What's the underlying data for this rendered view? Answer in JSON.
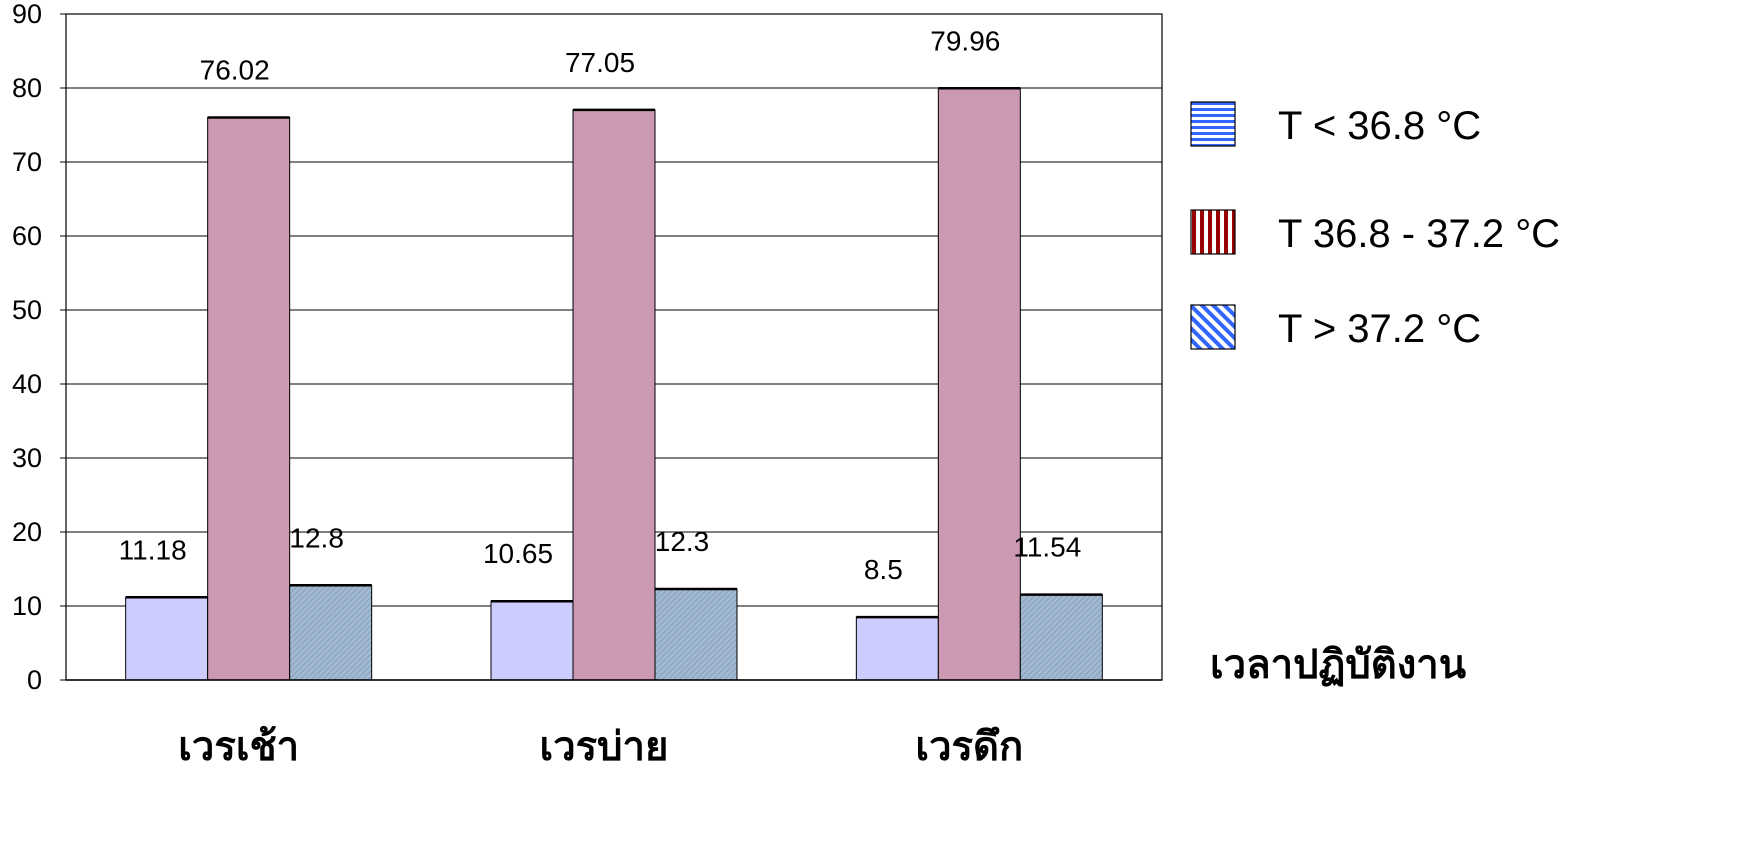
{
  "chart_data": {
    "type": "bar",
    "categories": [
      "เวรเช้า",
      "เวรบ่าย",
      "เวรดึก"
    ],
    "series": [
      {
        "name": "T  < 36.8 °C",
        "values": [
          11.18,
          10.65,
          8.5
        ],
        "color": "#ccccff",
        "legend_color": "#3366ff",
        "legend_pattern": "horizontal-stripes"
      },
      {
        "name": "T 36.8 - 37.2 °C",
        "values": [
          76.02,
          77.05,
          79.96
        ],
        "color": "#cc99b3",
        "legend_color": "#990000",
        "legend_pattern": "vertical-stripes"
      },
      {
        "name": "T  > 37.2 °C",
        "values": [
          12.8,
          12.3,
          11.54
        ],
        "color": "#99b3cc",
        "legend_color": "#3366ff",
        "legend_pattern": "diagonal-stripes"
      }
    ],
    "data_labels": [
      [
        "11.18",
        "10.65",
        "8.5"
      ],
      [
        "76.02",
        "77.05",
        "79.96"
      ],
      [
        "12.8",
        "12.3",
        "11.54"
      ]
    ],
    "yticks": [
      "0",
      "10",
      "20",
      "30",
      "40",
      "50",
      "60",
      "70",
      "80",
      "90"
    ],
    "ylim": [
      0,
      90
    ],
    "xlabel": "เวลาปฏิบัติงาน",
    "ylabel": "",
    "title": "",
    "grid": true,
    "legend_position": "right"
  }
}
